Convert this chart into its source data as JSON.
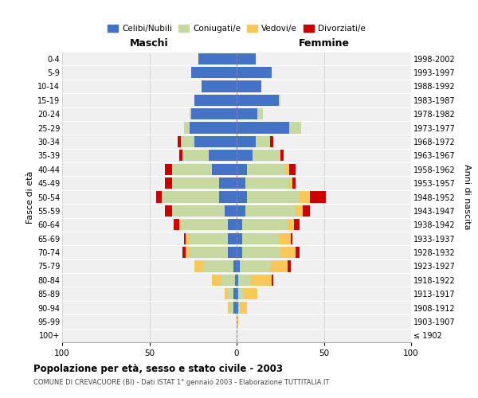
{
  "age_groups": [
    "100+",
    "95-99",
    "90-94",
    "85-89",
    "80-84",
    "75-79",
    "70-74",
    "65-69",
    "60-64",
    "55-59",
    "50-54",
    "45-49",
    "40-44",
    "35-39",
    "30-34",
    "25-29",
    "20-24",
    "15-19",
    "10-14",
    "5-9",
    "0-4"
  ],
  "birth_years": [
    "≤ 1902",
    "1903-1907",
    "1908-1912",
    "1913-1917",
    "1918-1922",
    "1923-1927",
    "1928-1932",
    "1933-1937",
    "1938-1942",
    "1943-1947",
    "1948-1952",
    "1953-1957",
    "1958-1962",
    "1963-1967",
    "1968-1972",
    "1973-1977",
    "1978-1982",
    "1983-1987",
    "1988-1992",
    "1993-1997",
    "1998-2002"
  ],
  "males": {
    "celibi": [
      0,
      0,
      2,
      2,
      1,
      2,
      5,
      5,
      5,
      7,
      10,
      10,
      14,
      16,
      24,
      27,
      26,
      24,
      20,
      26,
      22
    ],
    "coniugati": [
      0,
      0,
      2,
      3,
      8,
      17,
      22,
      22,
      27,
      30,
      33,
      27,
      23,
      15,
      8,
      3,
      1,
      0,
      0,
      0,
      0
    ],
    "vedovi": [
      0,
      0,
      1,
      2,
      5,
      5,
      2,
      2,
      1,
      0,
      0,
      0,
      0,
      0,
      0,
      0,
      0,
      0,
      0,
      0,
      0
    ],
    "divorziati": [
      0,
      0,
      0,
      0,
      0,
      0,
      2,
      1,
      3,
      4,
      3,
      4,
      4,
      2,
      2,
      0,
      0,
      0,
      0,
      0,
      0
    ]
  },
  "females": {
    "nubili": [
      0,
      0,
      1,
      1,
      1,
      2,
      3,
      3,
      3,
      5,
      6,
      5,
      6,
      9,
      11,
      30,
      12,
      24,
      14,
      20,
      11
    ],
    "coniugate": [
      0,
      0,
      1,
      3,
      7,
      17,
      22,
      21,
      26,
      29,
      30,
      25,
      22,
      16,
      8,
      7,
      3,
      1,
      0,
      0,
      0
    ],
    "vedove": [
      0,
      1,
      4,
      8,
      12,
      10,
      9,
      7,
      4,
      4,
      6,
      2,
      2,
      0,
      0,
      0,
      0,
      0,
      0,
      0,
      0
    ],
    "divorziate": [
      0,
      0,
      0,
      0,
      1,
      2,
      2,
      1,
      3,
      4,
      9,
      2,
      4,
      2,
      2,
      0,
      0,
      0,
      0,
      0,
      0
    ]
  },
  "colors": {
    "celibi": "#4472C4",
    "coniugati": "#C5D9A0",
    "vedovi": "#FAC858",
    "divorziati": "#CC0000"
  },
  "xlim": 100,
  "title": "Popolazione per età, sesso e stato civile - 2003",
  "subtitle": "COMUNE DI CREVACUORE (BI) - Dati ISTAT 1° gennaio 2003 - Elaborazione TUTTITALIA.IT",
  "xlabel_left": "Maschi",
  "xlabel_right": "Femmine",
  "ylabel_left": "Fasce di età",
  "ylabel_right": "Anni di nascita",
  "legend_labels": [
    "Celibi/Nubili",
    "Coniugati/e",
    "Vedovi/e",
    "Divorziati/e"
  ],
  "bg_color": "#f0f0f0"
}
